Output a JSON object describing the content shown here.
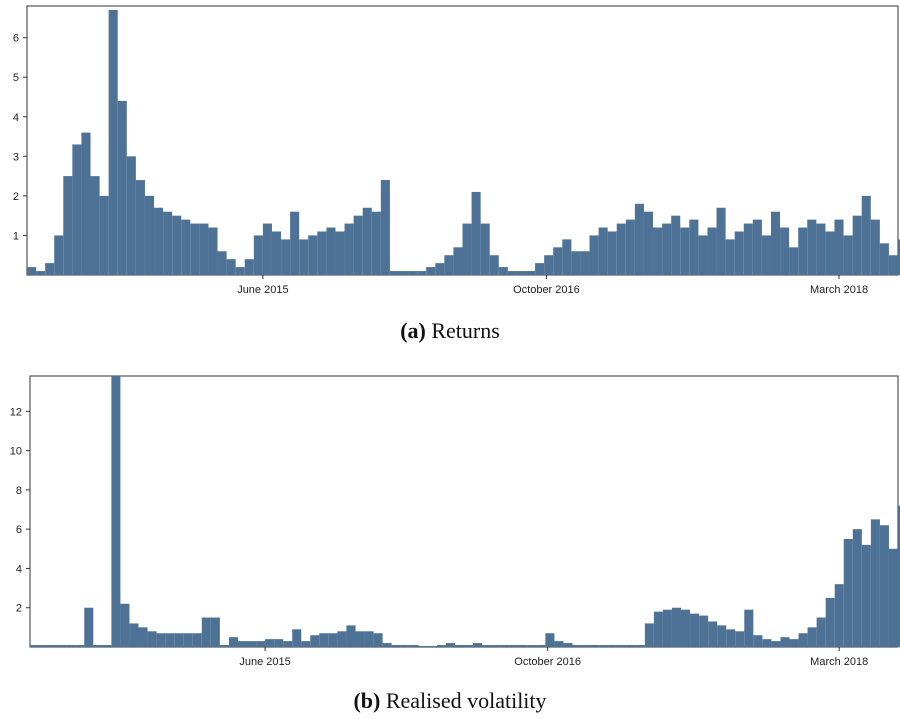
{
  "charts": {
    "a": {
      "tag": "(a)",
      "title": "Returns"
    },
    "b": {
      "tag": "(b)",
      "title": "Realised volatility"
    }
  },
  "chart_data": [
    {
      "id": "a",
      "type": "area",
      "title": "Returns",
      "xlabel": "",
      "ylabel": "",
      "x_ticks": [
        "June 2015",
        "October 2016",
        "March 2018"
      ],
      "x_tick_positions": [
        4.0,
        10.25,
        16.7
      ],
      "xlim": [
        -1.2,
        18.0
      ],
      "y_ticks": [
        1,
        2,
        3,
        4,
        5,
        6
      ],
      "ylim": [
        0,
        6.8
      ],
      "grid": false,
      "color": "#4e7296",
      "x": [
        -1.2,
        -1.0,
        -0.8,
        -0.6,
        -0.4,
        -0.2,
        0.0,
        0.2,
        0.4,
        0.6,
        0.8,
        1.0,
        1.2,
        1.4,
        1.6,
        1.8,
        2.0,
        2.2,
        2.4,
        2.6,
        2.8,
        3.0,
        3.2,
        3.4,
        3.6,
        3.8,
        4.0,
        4.2,
        4.4,
        4.6,
        4.8,
        5.0,
        5.2,
        5.4,
        5.6,
        5.8,
        6.0,
        6.2,
        6.4,
        6.6,
        6.8,
        7.0,
        7.2,
        7.4,
        7.6,
        7.8,
        8.0,
        8.2,
        8.4,
        8.6,
        8.8,
        9.0,
        9.2,
        9.4,
        9.6,
        9.8,
        10.0,
        10.2,
        10.4,
        10.6,
        10.8,
        11.0,
        11.2,
        11.4,
        11.6,
        11.8,
        12.0,
        12.2,
        12.4,
        12.6,
        12.8,
        13.0,
        13.2,
        13.4,
        13.6,
        13.8,
        14.0,
        14.2,
        14.4,
        14.6,
        14.8,
        15.0,
        15.2,
        15.4,
        15.6,
        15.8,
        16.0,
        16.2,
        16.4,
        16.6,
        16.8,
        17.0,
        17.2,
        17.4,
        17.6,
        17.8,
        18.0
      ],
      "y": [
        0.2,
        0.1,
        0.3,
        1.0,
        2.5,
        3.3,
        3.6,
        2.5,
        2.0,
        6.7,
        4.4,
        3.0,
        2.4,
        2.0,
        1.7,
        1.6,
        1.5,
        1.4,
        1.3,
        1.3,
        1.2,
        0.6,
        0.4,
        0.2,
        0.4,
        1.0,
        1.3,
        1.1,
        0.9,
        1.6,
        0.9,
        1.0,
        1.1,
        1.2,
        1.1,
        1.3,
        1.5,
        1.7,
        1.6,
        2.4,
        0.1,
        0.1,
        0.1,
        0.1,
        0.2,
        0.3,
        0.5,
        0.7,
        1.3,
        2.1,
        1.3,
        0.5,
        0.2,
        0.1,
        0.1,
        0.1,
        0.3,
        0.5,
        0.7,
        0.9,
        0.6,
        0.6,
        1.0,
        1.2,
        1.1,
        1.3,
        1.4,
        1.8,
        1.6,
        1.2,
        1.3,
        1.5,
        1.2,
        1.4,
        1.0,
        1.2,
        1.7,
        0.9,
        1.1,
        1.3,
        1.4,
        1.0,
        1.6,
        1.2,
        0.7,
        1.2,
        1.4,
        1.3,
        1.1,
        1.4,
        1.0,
        1.5,
        2.0,
        1.4,
        0.8,
        0.5,
        0.9
      ]
    },
    {
      "id": "b",
      "type": "area",
      "title": "Realised volatility",
      "xlabel": "",
      "ylabel": "",
      "x_ticks": [
        "June 2015",
        "October 2016",
        "March 2018"
      ],
      "x_tick_positions": [
        4.0,
        10.25,
        16.7
      ],
      "xlim": [
        -1.2,
        18.0
      ],
      "y_ticks": [
        2,
        4,
        6,
        8,
        10,
        12
      ],
      "ylim": [
        0,
        13.8
      ],
      "grid": false,
      "color": "#4e7296",
      "x": [
        -1.2,
        -1.0,
        -0.8,
        -0.6,
        -0.4,
        -0.2,
        0.0,
        0.2,
        0.4,
        0.6,
        0.8,
        1.0,
        1.2,
        1.4,
        1.6,
        1.8,
        2.0,
        2.2,
        2.4,
        2.6,
        2.8,
        3.0,
        3.2,
        3.4,
        3.6,
        3.8,
        4.0,
        4.2,
        4.4,
        4.6,
        4.8,
        5.0,
        5.2,
        5.4,
        5.6,
        5.8,
        6.0,
        6.2,
        6.4,
        6.6,
        6.8,
        7.0,
        7.2,
        7.4,
        7.6,
        7.8,
        8.0,
        8.2,
        8.4,
        8.6,
        8.8,
        9.0,
        9.2,
        9.4,
        9.6,
        9.8,
        10.0,
        10.2,
        10.4,
        10.6,
        10.8,
        11.0,
        11.2,
        11.4,
        11.6,
        11.8,
        12.0,
        12.2,
        12.4,
        12.6,
        12.8,
        13.0,
        13.2,
        13.4,
        13.6,
        13.8,
        14.0,
        14.2,
        14.4,
        14.6,
        14.8,
        15.0,
        15.2,
        15.4,
        15.6,
        15.8,
        16.0,
        16.2,
        16.4,
        16.6,
        16.8,
        17.0,
        17.2,
        17.4,
        17.6,
        17.8,
        18.0
      ],
      "y": [
        0.1,
        0.1,
        0.1,
        0.1,
        0.1,
        0.1,
        2.0,
        0.1,
        0.1,
        13.8,
        2.2,
        1.2,
        1.0,
        0.8,
        0.7,
        0.7,
        0.7,
        0.7,
        0.7,
        1.5,
        1.5,
        0.1,
        0.5,
        0.3,
        0.3,
        0.3,
        0.4,
        0.4,
        0.3,
        0.9,
        0.3,
        0.6,
        0.7,
        0.7,
        0.8,
        1.1,
        0.8,
        0.8,
        0.7,
        0.2,
        0.1,
        0.1,
        0.1,
        0.05,
        0.05,
        0.1,
        0.2,
        0.1,
        0.1,
        0.2,
        0.1,
        0.1,
        0.1,
        0.1,
        0.1,
        0.1,
        0.1,
        0.7,
        0.3,
        0.2,
        0.1,
        0.1,
        0.1,
        0.1,
        0.1,
        0.1,
        0.1,
        0.1,
        1.2,
        1.8,
        1.9,
        2.0,
        1.9,
        1.7,
        1.6,
        1.3,
        1.1,
        0.9,
        0.8,
        1.9,
        0.6,
        0.4,
        0.3,
        0.5,
        0.4,
        0.7,
        1.0,
        1.5,
        2.5,
        3.2,
        5.5,
        6.0,
        5.2,
        6.5,
        6.2,
        5.0,
        7.2
      ]
    }
  ]
}
